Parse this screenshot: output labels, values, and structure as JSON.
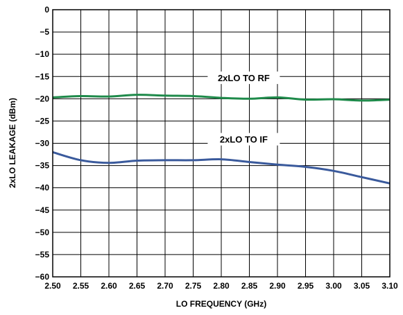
{
  "chart_data": {
    "type": "line",
    "xlabel": "LO FREQUENCY (GHz)",
    "ylabel": "2xLO LEAKAGE (dBm)",
    "xlim": [
      2.5,
      3.1
    ],
    "ylim": [
      -60,
      0
    ],
    "x_ticks": [
      "2.50",
      "2.55",
      "2.60",
      "2.65",
      "2.70",
      "2.75",
      "2.80",
      "2.85",
      "2.90",
      "2.95",
      "3.00",
      "3.05",
      "3.10"
    ],
    "y_ticks": [
      "0",
      "−5",
      "−10",
      "−15",
      "−20",
      "−25",
      "−30",
      "−35",
      "−40",
      "−45",
      "−50",
      "−55",
      "−60"
    ],
    "grid": true,
    "series": [
      {
        "name": "2xLO TO RF",
        "color": "#1e8a4a",
        "x": [
          2.5,
          2.55,
          2.6,
          2.65,
          2.7,
          2.75,
          2.8,
          2.85,
          2.9,
          2.95,
          3.0,
          3.05,
          3.1
        ],
        "y": [
          -19.7,
          -19.4,
          -19.5,
          -19.1,
          -19.3,
          -19.4,
          -19.8,
          -20.0,
          -19.7,
          -20.2,
          -20.1,
          -20.4,
          -20.2
        ]
      },
      {
        "name": "2xLO TO IF",
        "color": "#3a5a9c",
        "x": [
          2.5,
          2.55,
          2.6,
          2.65,
          2.7,
          2.75,
          2.8,
          2.85,
          2.9,
          2.95,
          3.0,
          3.05,
          3.1
        ],
        "y": [
          -32.0,
          -33.8,
          -34.4,
          -33.9,
          -33.8,
          -33.8,
          -33.6,
          -34.2,
          -34.8,
          -35.3,
          -36.2,
          -37.6,
          -39.0
        ]
      }
    ],
    "annotations": [
      {
        "text": "2xLO TO RF",
        "x": 2.84,
        "y": -15.6
      },
      {
        "text": "2xLO TO IF",
        "x": 2.84,
        "y": -29.4
      }
    ]
  }
}
